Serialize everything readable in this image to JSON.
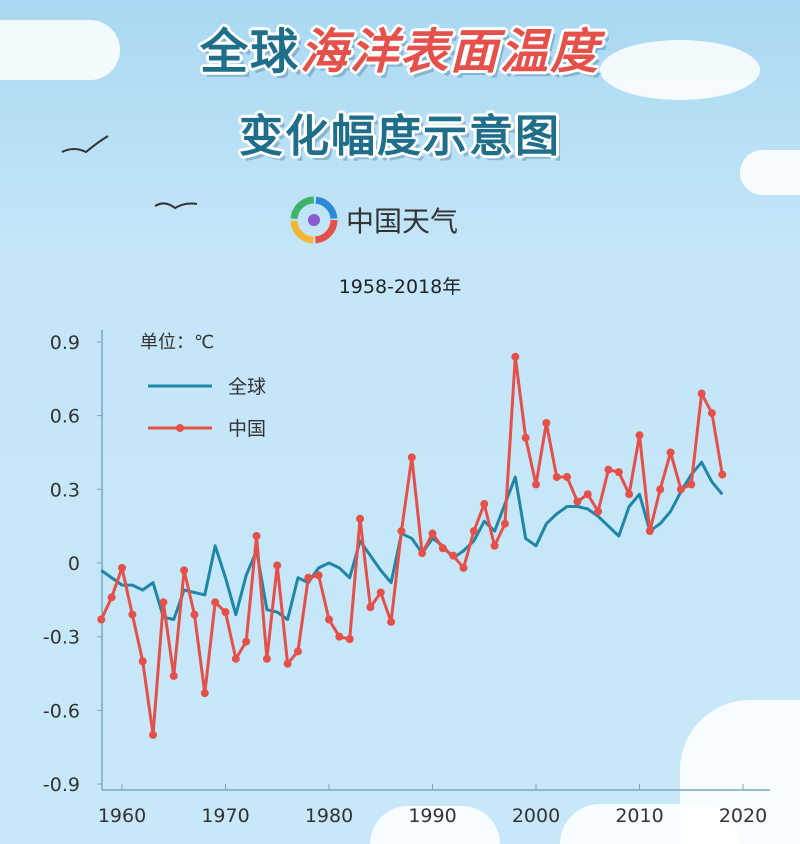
{
  "header": {
    "title_part1": "全球",
    "title_part2": "海洋表面温度",
    "title_line2": "变化幅度示意图",
    "logo_text": "中国天气",
    "subtitle": "1958-2018年"
  },
  "chart_data": {
    "type": "line",
    "title": "全球海洋表面温度变化幅度示意图",
    "unit_label": "单位：℃",
    "xlabel": "",
    "ylabel": "",
    "xlim": [
      1958,
      2020
    ],
    "ylim": [
      -0.9,
      0.9
    ],
    "x_ticks": [
      "1960",
      "1970",
      "1980",
      "1990",
      "2000",
      "2010",
      "2020"
    ],
    "y_ticks": [
      "0.9",
      "0.6",
      "0.3",
      "0",
      "-0.3",
      "-0.6",
      "-0.9"
    ],
    "legend_position": "top-left",
    "x": [
      1958,
      1959,
      1960,
      1961,
      1962,
      1963,
      1964,
      1965,
      1966,
      1967,
      1968,
      1969,
      1970,
      1971,
      1972,
      1973,
      1974,
      1975,
      1976,
      1977,
      1978,
      1979,
      1980,
      1981,
      1982,
      1983,
      1984,
      1985,
      1986,
      1987,
      1988,
      1989,
      1990,
      1991,
      1992,
      1993,
      1994,
      1995,
      1996,
      1997,
      1998,
      1999,
      2000,
      2001,
      2002,
      2003,
      2004,
      2005,
      2006,
      2007,
      2008,
      2009,
      2010,
      2011,
      2012,
      2013,
      2014,
      2015,
      2016,
      2017,
      2018
    ],
    "series": [
      {
        "name": "全球",
        "color": "#1f86a6",
        "markers": false,
        "values": [
          -0.03,
          -0.06,
          -0.09,
          -0.09,
          -0.11,
          -0.08,
          -0.22,
          -0.23,
          -0.11,
          -0.12,
          -0.13,
          0.07,
          -0.06,
          -0.21,
          -0.05,
          0.05,
          -0.19,
          -0.2,
          -0.23,
          -0.06,
          -0.08,
          -0.02,
          0.0,
          -0.02,
          -0.06,
          0.09,
          0.03,
          -0.03,
          -0.08,
          0.12,
          0.1,
          0.04,
          0.1,
          0.07,
          0.02,
          0.05,
          0.09,
          0.17,
          0.13,
          0.24,
          0.35,
          0.1,
          0.07,
          0.16,
          0.2,
          0.23,
          0.23,
          0.22,
          0.19,
          0.15,
          0.11,
          0.23,
          0.28,
          0.13,
          0.16,
          0.21,
          0.29,
          0.36,
          0.41,
          0.33,
          0.28
        ]
      },
      {
        "name": "中国",
        "color": "#e5504a",
        "markers": true,
        "values": [
          -0.23,
          -0.14,
          -0.02,
          -0.21,
          -0.4,
          -0.7,
          -0.16,
          -0.46,
          -0.03,
          -0.21,
          -0.53,
          -0.16,
          -0.2,
          -0.39,
          -0.32,
          0.11,
          -0.39,
          -0.01,
          -0.41,
          -0.36,
          -0.06,
          -0.05,
          -0.23,
          -0.3,
          -0.31,
          0.18,
          -0.18,
          -0.12,
          -0.24,
          0.13,
          0.43,
          0.04,
          0.12,
          0.06,
          0.03,
          -0.02,
          0.13,
          0.24,
          0.07,
          0.16,
          0.84,
          0.51,
          0.32,
          0.57,
          0.35,
          0.35,
          0.25,
          0.28,
          0.21,
          0.38,
          0.37,
          0.28,
          0.52,
          0.13,
          0.3,
          0.45,
          0.3,
          0.32,
          0.69,
          0.61,
          0.36
        ]
      }
    ]
  }
}
